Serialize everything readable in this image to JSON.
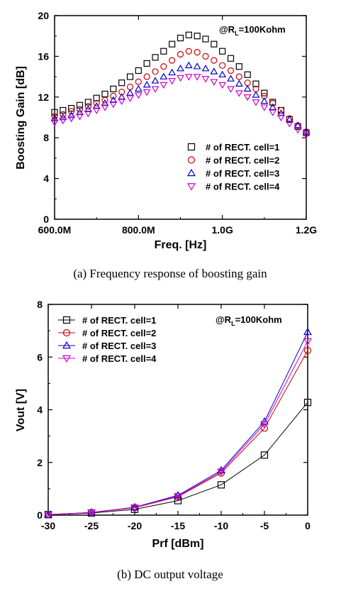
{
  "figures": [
    {
      "caption": "(a) Frequency response of boosting gain"
    },
    {
      "caption": "(b) DC output voltage"
    }
  ],
  "chart_data": [
    {
      "type": "scatter",
      "title": "",
      "annotation_prefix": "@R",
      "annotation_sub": "L",
      "annotation_suffix": "=100Kohm",
      "xlabel": "Freq. [Hz]",
      "ylabel": "Boosting Gain [dB]",
      "xlim": [
        600,
        1200
      ],
      "ylim": [
        0,
        20
      ],
      "x_ticks": [
        600,
        800,
        1000,
        1200
      ],
      "x_tick_labels": [
        "600.0M",
        "800.0M",
        "1.0G",
        "1.2G"
      ],
      "y_ticks": [
        0,
        4,
        8,
        12,
        16,
        20
      ],
      "y_tick_labels": [
        "0",
        "4",
        "8",
        "12",
        "16",
        "20"
      ],
      "grid": false,
      "legend_position": "bottom-right",
      "series": [
        {
          "name": "# of RECT. cell=1",
          "color": "#000000",
          "marker": "square",
          "x": [
            600,
            620,
            640,
            660,
            680,
            700,
            720,
            740,
            760,
            780,
            800,
            820,
            840,
            860,
            880,
            900,
            920,
            940,
            960,
            980,
            1000,
            1020,
            1040,
            1060,
            1080,
            1100,
            1120,
            1140,
            1160,
            1180,
            1200
          ],
          "values": [
            10.5,
            10.7,
            10.9,
            11.2,
            11.5,
            11.9,
            12.3,
            12.8,
            13.4,
            14.0,
            14.6,
            15.3,
            15.9,
            16.5,
            17.2,
            17.8,
            18.1,
            18.0,
            17.7,
            17.2,
            16.5,
            15.8,
            15.0,
            14.2,
            13.3,
            12.4,
            11.5,
            10.7,
            9.8,
            9.1,
            8.5
          ]
        },
        {
          "name": "# of RECT. cell=2",
          "color": "#cc0000",
          "marker": "circle",
          "x": [
            600,
            620,
            640,
            660,
            680,
            700,
            720,
            740,
            760,
            780,
            800,
            820,
            840,
            860,
            880,
            900,
            920,
            940,
            960,
            980,
            1000,
            1020,
            1040,
            1060,
            1080,
            1100,
            1120,
            1140,
            1160,
            1180,
            1200
          ],
          "values": [
            10.1,
            10.3,
            10.6,
            10.8,
            11.1,
            11.4,
            11.7,
            12.1,
            12.5,
            13.0,
            13.5,
            14.0,
            14.5,
            15.0,
            15.6,
            16.2,
            16.5,
            16.4,
            16.0,
            15.6,
            15.1,
            14.6,
            14.0,
            13.4,
            12.8,
            12.1,
            11.4,
            10.7,
            9.9,
            9.2,
            8.6
          ]
        },
        {
          "name": "# of RECT. cell=3",
          "color": "#0000cc",
          "marker": "triangle-up",
          "x": [
            600,
            620,
            640,
            660,
            680,
            700,
            720,
            740,
            760,
            780,
            800,
            820,
            840,
            860,
            880,
            900,
            920,
            940,
            960,
            980,
            1000,
            1020,
            1040,
            1060,
            1080,
            1100,
            1120,
            1140,
            1160,
            1180,
            1200
          ],
          "values": [
            9.9,
            10.0,
            10.2,
            10.5,
            10.8,
            11.1,
            11.4,
            11.7,
            12.0,
            12.4,
            12.8,
            13.2,
            13.6,
            14.0,
            14.4,
            14.8,
            15.1,
            15.0,
            14.8,
            14.5,
            14.2,
            13.8,
            13.3,
            12.8,
            12.2,
            11.6,
            11.0,
            10.4,
            9.8,
            9.2,
            8.6
          ]
        },
        {
          "name": "# of RECT. cell=4",
          "color": "#cc00cc",
          "marker": "triangle-down",
          "x": [
            600,
            620,
            640,
            660,
            680,
            700,
            720,
            740,
            760,
            780,
            800,
            820,
            840,
            860,
            880,
            900,
            920,
            940,
            960,
            980,
            1000,
            1020,
            1040,
            1060,
            1080,
            1100,
            1120,
            1140,
            1160,
            1180,
            1200
          ],
          "values": [
            9.5,
            9.7,
            9.9,
            10.1,
            10.4,
            10.7,
            11.0,
            11.3,
            11.6,
            11.9,
            12.2,
            12.5,
            12.8,
            13.2,
            13.6,
            13.9,
            14.0,
            14.0,
            13.8,
            13.5,
            13.2,
            12.8,
            12.4,
            12.0,
            11.5,
            11.0,
            10.5,
            10.0,
            9.4,
            8.8,
            8.3
          ]
        }
      ]
    },
    {
      "type": "line",
      "title": "",
      "annotation_prefix": "@R",
      "annotation_sub": "L",
      "annotation_suffix": "=100Kohm",
      "xlabel": "Prf [dBm]",
      "ylabel": "Vout [V]",
      "xlim": [
        -30,
        0
      ],
      "ylim": [
        0,
        8
      ],
      "x_ticks": [
        -30,
        -25,
        -20,
        -15,
        -10,
        -5,
        0
      ],
      "x_tick_labels": [
        "-30",
        "-25",
        "-20",
        "-15",
        "-10",
        "-5",
        "0"
      ],
      "y_ticks": [
        0,
        2,
        4,
        6,
        8
      ],
      "y_tick_labels": [
        "0",
        "2",
        "4",
        "6",
        "8"
      ],
      "grid": false,
      "legend_position": "top-left",
      "series": [
        {
          "name": "# of RECT. cell=1",
          "color": "#000000",
          "marker": "square",
          "x": [
            -30,
            -25,
            -20,
            -15,
            -10,
            -5,
            0
          ],
          "values": [
            0.02,
            0.08,
            0.22,
            0.55,
            1.15,
            2.28,
            4.28
          ]
        },
        {
          "name": "# of RECT. cell=2",
          "color": "#cc0000",
          "marker": "circle",
          "x": [
            -30,
            -25,
            -20,
            -15,
            -10,
            -5,
            0
          ],
          "values": [
            0.02,
            0.1,
            0.28,
            0.7,
            1.6,
            3.3,
            6.25
          ]
        },
        {
          "name": "# of RECT. cell=3",
          "color": "#0000cc",
          "marker": "triangle-up",
          "x": [
            -30,
            -25,
            -20,
            -15,
            -10,
            -5,
            0
          ],
          "values": [
            0.02,
            0.1,
            0.3,
            0.75,
            1.7,
            3.55,
            6.95
          ]
        },
        {
          "name": "# of RECT. cell=4",
          "color": "#cc00cc",
          "marker": "triangle-down",
          "x": [
            -30,
            -25,
            -20,
            -15,
            -10,
            -5,
            0
          ],
          "values": [
            0.02,
            0.1,
            0.29,
            0.72,
            1.65,
            3.45,
            6.6
          ]
        }
      ]
    }
  ]
}
